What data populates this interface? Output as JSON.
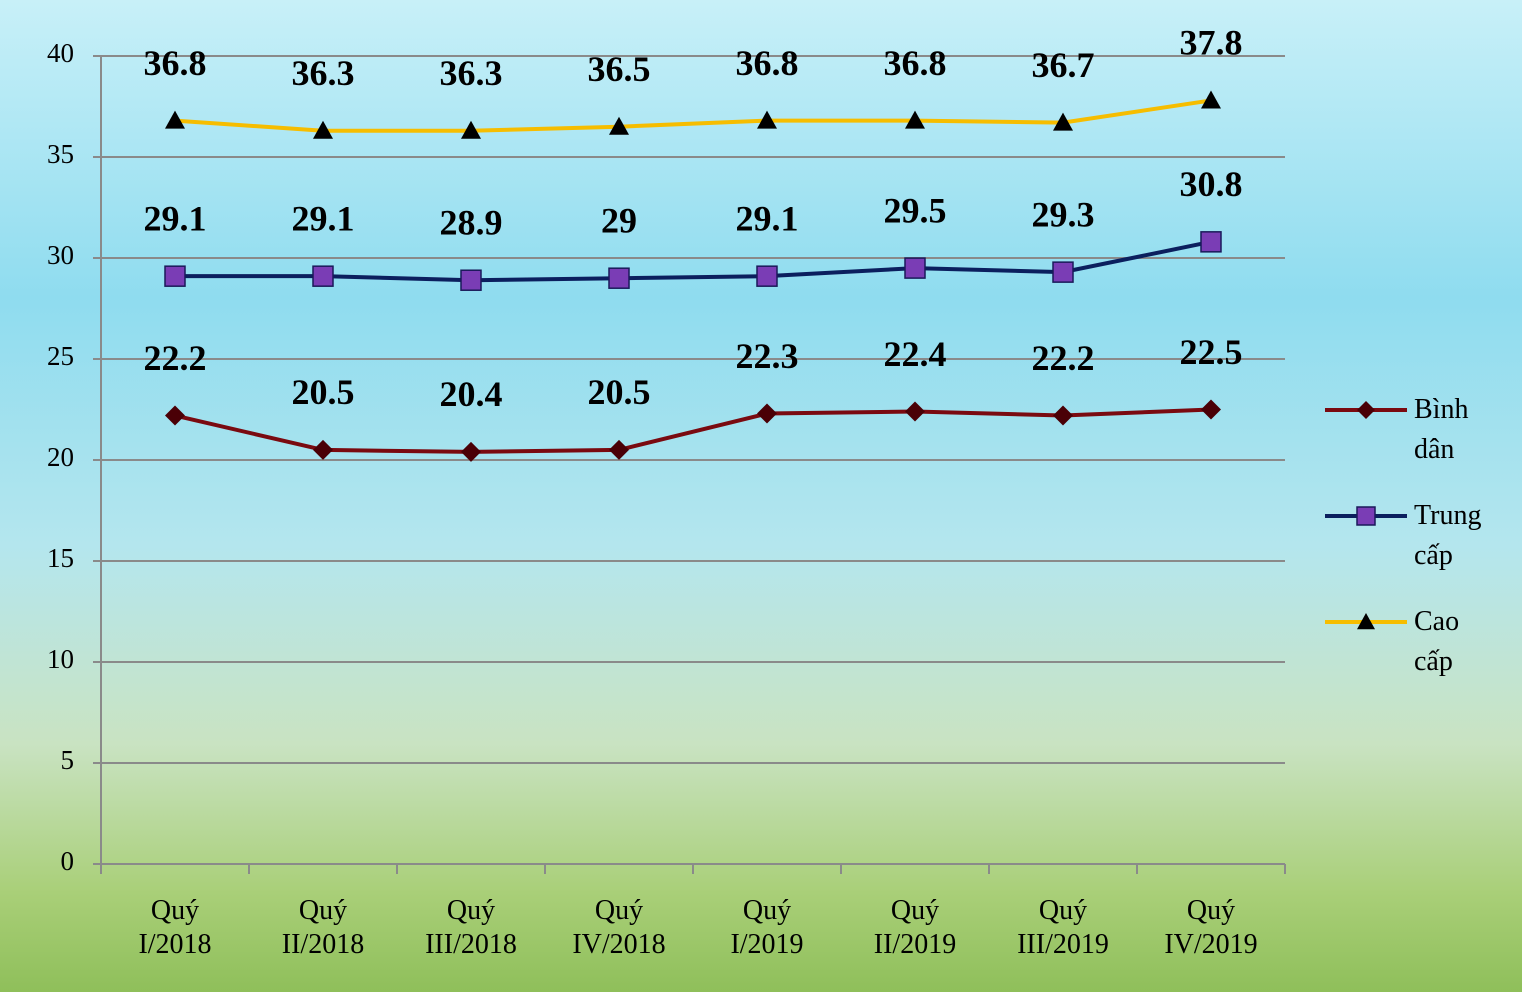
{
  "chart_data": {
    "type": "line",
    "categories": [
      "Quý I/2018",
      "Quý II/2018",
      "Quý III/2018",
      "Quý IV/2018",
      "Quý I/2019",
      "Quý II/2019",
      "Quý III/2019",
      "Quý IV/2019"
    ],
    "series": [
      {
        "name": "Bình dân",
        "color": "#7a0a10",
        "marker": "diamond",
        "marker_color": "#4a0006",
        "values": [
          22.2,
          20.5,
          20.4,
          20.5,
          22.3,
          22.4,
          22.2,
          22.5
        ]
      },
      {
        "name": "Trung cấp",
        "color": "#0b1f5e",
        "marker": "square",
        "marker_color": "#7a3db5",
        "values": [
          29.1,
          29.1,
          28.9,
          29,
          29.1,
          29.5,
          29.3,
          30.8
        ]
      },
      {
        "name": "Cao cấp",
        "color": "#f6bd00",
        "marker": "triangle",
        "marker_color": "#000000",
        "values": [
          36.8,
          36.3,
          36.3,
          36.5,
          36.8,
          36.8,
          36.7,
          37.8
        ]
      }
    ],
    "ylim": [
      0,
      40
    ],
    "yticks": [
      0,
      5,
      10,
      15,
      20,
      25,
      30,
      35,
      40
    ],
    "grid": true,
    "legend": "right"
  }
}
